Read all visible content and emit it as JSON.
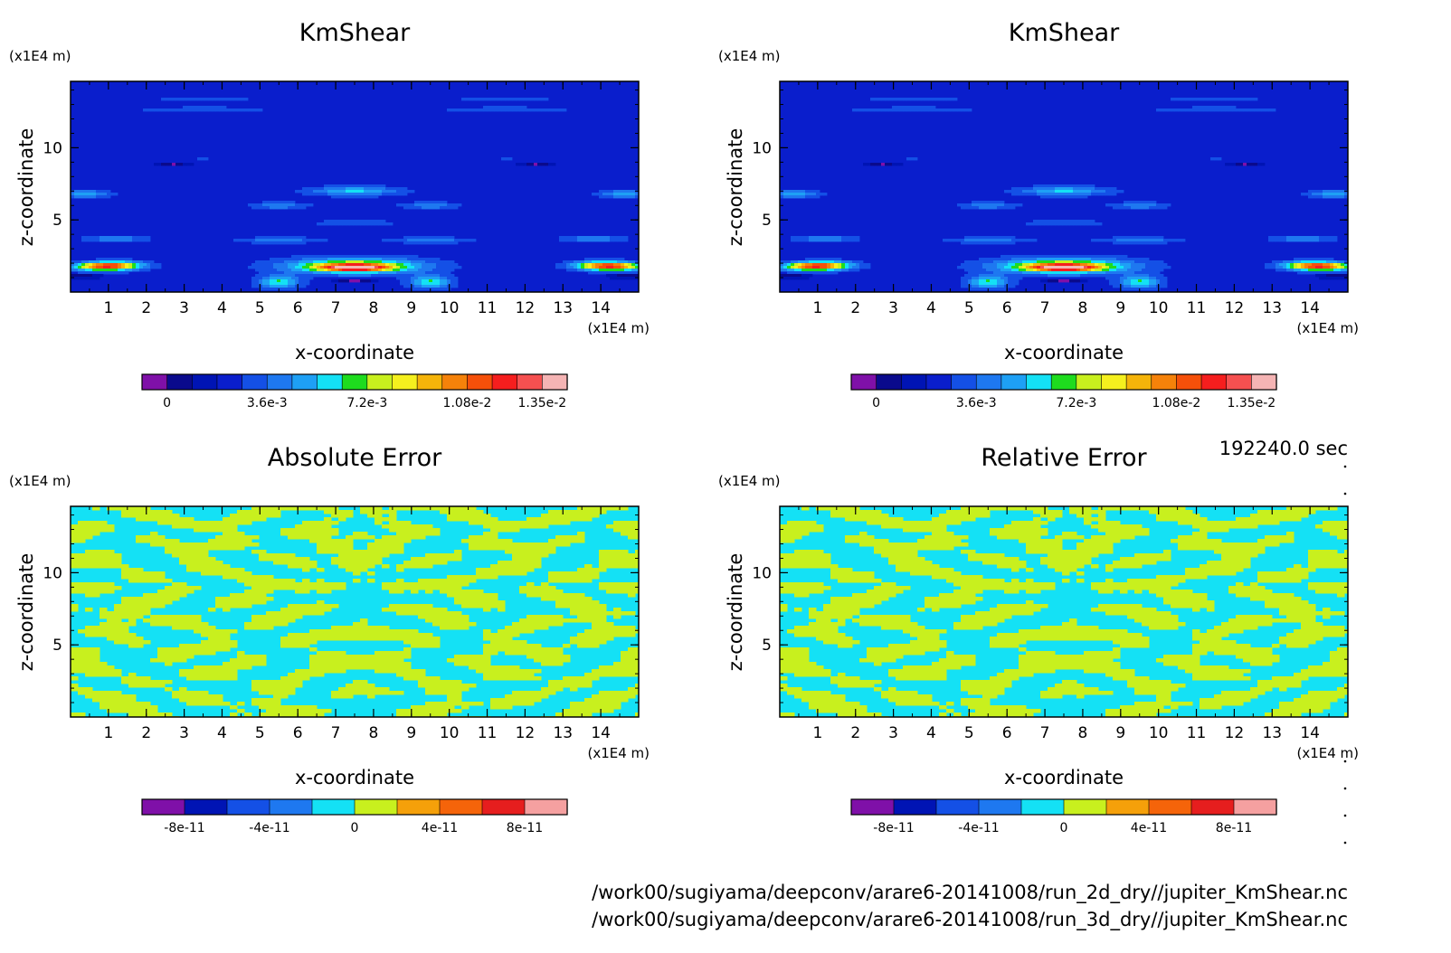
{
  "time_stamp": "192240.0 sec",
  "file_paths": [
    "/work00/sugiyama/deepconv/arare6-20141008/run_2d_dry//jupiter_KmShear.nc",
    "/work00/sugiyama/deepconv/arare6-20141008/run_3d_dry//jupiter_KmShear.nc"
  ],
  "chart_data": [
    {
      "type": "heatmap",
      "title": "KmShear",
      "xlabel": "x-coordinate",
      "ylabel": "z-coordinate",
      "x_unit": "(x1E4 m)",
      "y_unit": "(x1E4 m)",
      "xlim": [
        0,
        15
      ],
      "ylim": [
        0,
        14.6
      ],
      "x_ticks": [
        1,
        2,
        3,
        4,
        5,
        6,
        7,
        8,
        9,
        10,
        11,
        12,
        13,
        14
      ],
      "y_ticks": [
        5,
        10
      ],
      "background_color": "#0a1ecc",
      "features": [
        {
          "x": 1.0,
          "z": 1.8,
          "rx": 0.9,
          "rz": 0.35,
          "peak": 0.0125,
          "rot": 22
        },
        {
          "x": 14.2,
          "z": 1.8,
          "rx": 0.9,
          "rz": 0.35,
          "peak": 0.0125,
          "rot": -22
        },
        {
          "x": 7.5,
          "z": 1.8,
          "rx": 2.0,
          "rz": 0.6,
          "peak": 0.0085
        },
        {
          "x": 7.5,
          "z": 1.7,
          "rx": 1.0,
          "rz": 0.28,
          "peak": 0.0105
        },
        {
          "x": 5.5,
          "z": 0.7,
          "rx": 0.6,
          "rz": 0.5,
          "peak": 0.0065
        },
        {
          "x": 9.5,
          "z": 0.7,
          "rx": 0.6,
          "rz": 0.5,
          "peak": 0.0065
        },
        {
          "x": 7.5,
          "z": 7.0,
          "rx": 1.3,
          "rz": 0.35,
          "peak": 0.0055
        },
        {
          "x": 5.5,
          "z": 6.0,
          "rx": 0.8,
          "rz": 0.25,
          "peak": 0.0045
        },
        {
          "x": 9.5,
          "z": 6.0,
          "rx": 0.8,
          "rz": 0.25,
          "peak": 0.0045
        },
        {
          "x": 0.4,
          "z": 6.8,
          "rx": 0.7,
          "rz": 0.3,
          "peak": 0.005
        },
        {
          "x": 14.6,
          "z": 6.8,
          "rx": 0.7,
          "rz": 0.3,
          "peak": 0.005
        },
        {
          "x": 1.2,
          "z": 3.7,
          "rx": 0.9,
          "rz": 0.25,
          "peak": 0.0045
        },
        {
          "x": 13.8,
          "z": 3.7,
          "rx": 0.9,
          "rz": 0.25,
          "peak": 0.0045
        },
        {
          "x": 5.5,
          "z": 3.6,
          "rx": 1.2,
          "rz": 0.22,
          "peak": 0.0042
        },
        {
          "x": 9.5,
          "z": 3.6,
          "rx": 1.2,
          "rz": 0.22,
          "peak": 0.0042
        },
        {
          "x": 7.5,
          "z": 4.8,
          "rx": 1.4,
          "rz": 0.3,
          "peak": 0.0032
        },
        {
          "x": 3.5,
          "z": 12.7,
          "rx": 2.0,
          "rz": 0.12,
          "peak": 0.004
        },
        {
          "x": 11.5,
          "z": 12.7,
          "rx": 2.0,
          "rz": 0.12,
          "peak": 0.004
        },
        {
          "x": 3.5,
          "z": 13.4,
          "rx": 1.5,
          "rz": 0.12,
          "peak": 0.0033
        },
        {
          "x": 11.5,
          "z": 13.4,
          "rx": 1.5,
          "rz": 0.12,
          "peak": 0.0033
        },
        {
          "x": 3.5,
          "z": 9.3,
          "rx": 1.0,
          "rz": 0.1,
          "peak": 0.003
        },
        {
          "x": 11.5,
          "z": 9.3,
          "rx": 1.0,
          "rz": 0.1,
          "peak": 0.003
        },
        {
          "x": 2.7,
          "z": 8.9,
          "rx": 0.45,
          "rz": 0.1,
          "peak": -0.0004
        },
        {
          "x": 12.3,
          "z": 8.9,
          "rx": 0.45,
          "rz": 0.1,
          "peak": -0.0004
        },
        {
          "x": 0.3,
          "z": 1.1,
          "rx": 0.5,
          "rz": 0.15,
          "peak": -0.0004
        },
        {
          "x": 14.7,
          "z": 1.1,
          "rx": 0.5,
          "rz": 0.15,
          "peak": -0.0004
        },
        {
          "x": 7.5,
          "z": 0.8,
          "rx": 0.6,
          "rz": 0.12,
          "peak": -0.0004
        }
      ],
      "colorbar": {
        "levels": [
          -0.0009,
          0,
          0.0009,
          0.0018,
          0.0027,
          0.0036,
          0.0045,
          0.0054,
          0.0063,
          0.0072,
          0.0081,
          0.009,
          0.0099,
          0.0108,
          0.0117,
          0.0126,
          0.0135
        ],
        "colors": [
          "#7f10a8",
          "#0a0a8c",
          "#0014b4",
          "#0a1ecc",
          "#1450e6",
          "#1e78f0",
          "#1ea0f5",
          "#14e1f5",
          "#1edc1e",
          "#c8f01e",
          "#f5f01e",
          "#f5b40a",
          "#f5820a",
          "#f5500a",
          "#f51e1e",
          "#f55050",
          "#f5b4b4"
        ],
        "labels": [
          "0",
          "3.6e-3",
          "7.2e-3",
          "1.08e-2",
          "1.35e-2"
        ],
        "label_values": [
          0,
          0.0036,
          0.0072,
          0.0108,
          0.0135
        ]
      }
    },
    {
      "type": "heatmap",
      "title": "KmShear",
      "xlabel": "x-coordinate",
      "ylabel": "z-coordinate",
      "x_unit": "(x1E4 m)",
      "y_unit": "(x1E4 m)",
      "xlim": [
        0,
        15
      ],
      "ylim": [
        0,
        14.6
      ],
      "x_ticks": [
        1,
        2,
        3,
        4,
        5,
        6,
        7,
        8,
        9,
        10,
        11,
        12,
        13,
        14
      ],
      "y_ticks": [
        5,
        10
      ],
      "background_color": "#0a1ecc",
      "same_field_as_panel": 0,
      "colorbar": {
        "levels": [
          -0.0009,
          0,
          0.0009,
          0.0018,
          0.0027,
          0.0036,
          0.0045,
          0.0054,
          0.0063,
          0.0072,
          0.0081,
          0.009,
          0.0099,
          0.0108,
          0.0117,
          0.0126,
          0.0135
        ],
        "colors": [
          "#7f10a8",
          "#0a0a8c",
          "#0014b4",
          "#0a1ecc",
          "#1450e6",
          "#1e78f0",
          "#1ea0f5",
          "#14e1f5",
          "#1edc1e",
          "#c8f01e",
          "#f5f01e",
          "#f5b40a",
          "#f5820a",
          "#f5500a",
          "#f51e1e",
          "#f55050",
          "#f5b4b4"
        ],
        "labels": [
          "0",
          "3.6e-3",
          "7.2e-3",
          "1.08e-2",
          "1.35e-2"
        ],
        "label_values": [
          0,
          0.0036,
          0.0072,
          0.0108,
          0.0135
        ]
      }
    },
    {
      "type": "heatmap",
      "title": "Absolute Error",
      "xlabel": "x-coordinate",
      "ylabel": "z-coordinate",
      "x_unit": "(x1E4 m)",
      "y_unit": "(x1E4 m)",
      "xlim": [
        0,
        15
      ],
      "ylim": [
        0,
        14.6
      ],
      "x_ticks": [
        1,
        2,
        3,
        4,
        5,
        6,
        7,
        8,
        9,
        10,
        11,
        12,
        13,
        14
      ],
      "y_ticks": [
        5,
        10
      ],
      "field": "binary noise pattern",
      "field_colors": [
        "#14e1f5",
        "#c8f01e"
      ],
      "colorbar": {
        "levels": [
          -1e-10,
          -8e-11,
          -6e-11,
          -4e-11,
          -2e-11,
          0,
          2e-11,
          4e-11,
          6e-11,
          8e-11,
          1e-10
        ],
        "colors": [
          "#7f10a8",
          "#0014b4",
          "#1450e6",
          "#1e78f0",
          "#14e1f5",
          "#c8f01e",
          "#f5a00a",
          "#f5640a",
          "#e61e1e",
          "#f5a0a0"
        ],
        "labels": [
          "-8e-11",
          "-4e-11",
          "0",
          "4e-11",
          "8e-11"
        ],
        "label_values": [
          -8e-11,
          -4e-11,
          0,
          4e-11,
          8e-11
        ]
      }
    },
    {
      "type": "heatmap",
      "title": "Relative Error",
      "xlabel": "x-coordinate",
      "ylabel": "z-coordinate",
      "x_unit": "(x1E4 m)",
      "y_unit": "(x1E4 m)",
      "xlim": [
        0,
        15
      ],
      "ylim": [
        0,
        14.6
      ],
      "x_ticks": [
        1,
        2,
        3,
        4,
        5,
        6,
        7,
        8,
        9,
        10,
        11,
        12,
        13,
        14
      ],
      "y_ticks": [
        5,
        10
      ],
      "field": "binary noise pattern",
      "field_colors": [
        "#14e1f5",
        "#c8f01e"
      ],
      "colorbar": {
        "levels": [
          -1e-10,
          -8e-11,
          -6e-11,
          -4e-11,
          -2e-11,
          0,
          2e-11,
          4e-11,
          6e-11,
          8e-11,
          1e-10
        ],
        "colors": [
          "#7f10a8",
          "#0014b4",
          "#1450e6",
          "#1e78f0",
          "#14e1f5",
          "#c8f01e",
          "#f5a00a",
          "#f5640a",
          "#e61e1e",
          "#f5a0a0"
        ],
        "labels": [
          "-8e-11",
          "-4e-11",
          "0",
          "4e-11",
          "8e-11"
        ],
        "label_values": [
          -8e-11,
          -4e-11,
          0,
          4e-11,
          8e-11
        ]
      }
    }
  ]
}
